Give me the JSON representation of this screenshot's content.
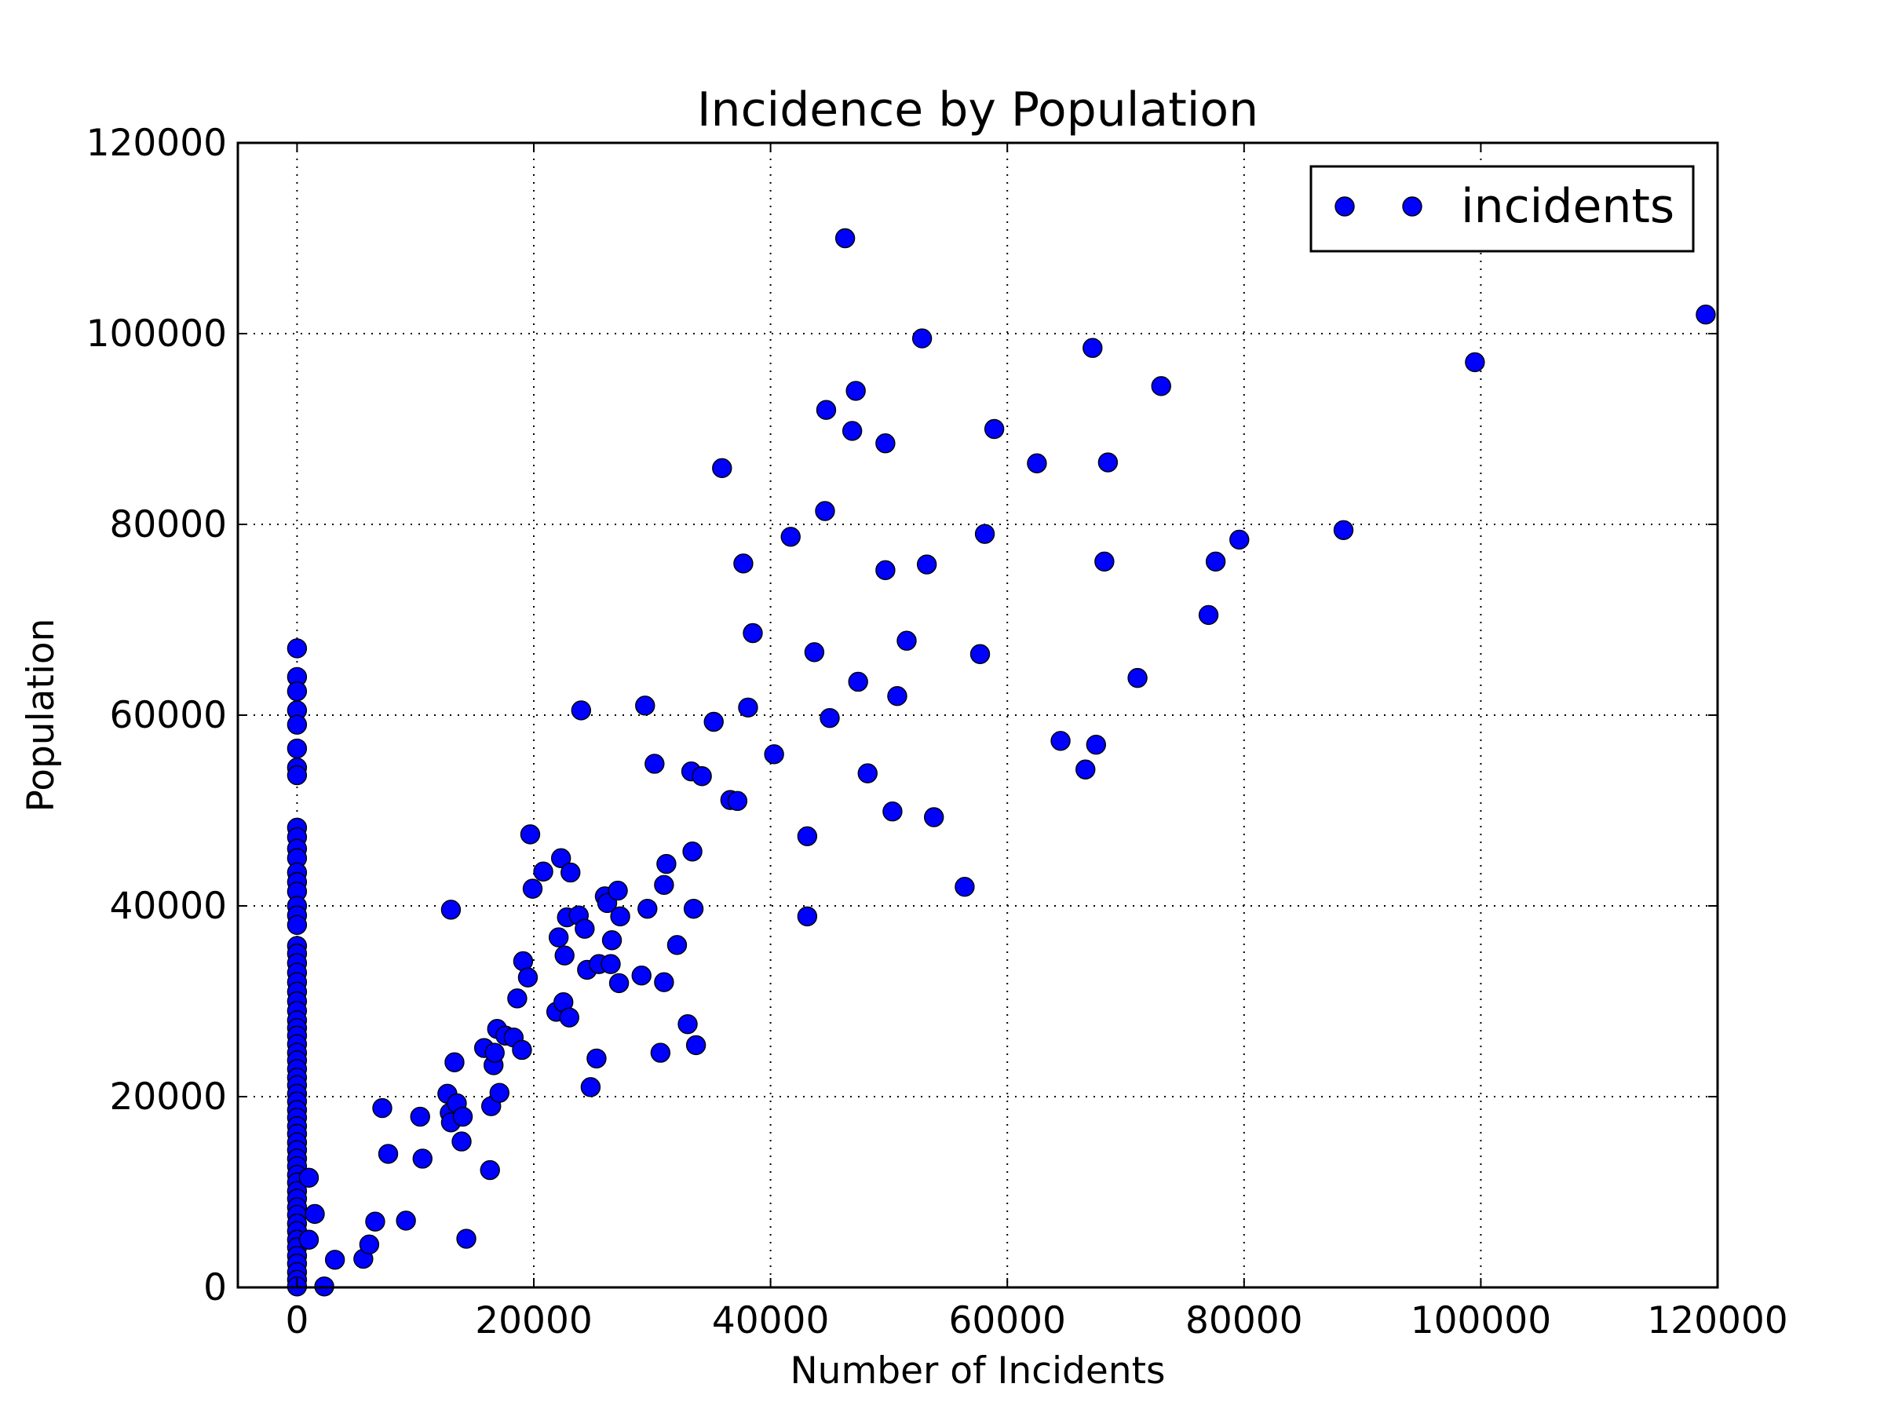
{
  "chart_data": {
    "type": "scatter",
    "title": "Incidence by Population",
    "xlabel": "Number of Incidents",
    "ylabel": "Population",
    "xlim": [
      -5000,
      120000
    ],
    "ylim": [
      0,
      120000
    ],
    "xticks": [
      "0",
      "20000",
      "40000",
      "60000",
      "80000",
      "100000",
      "120000"
    ],
    "yticks": [
      "0",
      "20000",
      "40000",
      "60000",
      "80000",
      "100000",
      "120000"
    ],
    "grid": true,
    "legend": "top-right",
    "marker_color": "#0000ff",
    "series": [
      {
        "name": "incidents",
        "points": [
          [
            0,
            67000
          ],
          [
            0,
            64000
          ],
          [
            0,
            62500
          ],
          [
            0,
            60500
          ],
          [
            0,
            59000
          ],
          [
            0,
            56500
          ],
          [
            0,
            54500
          ],
          [
            0,
            53700
          ],
          [
            0,
            48200
          ],
          [
            0,
            47200
          ],
          [
            0,
            46000
          ],
          [
            0,
            45000
          ],
          [
            0,
            43500
          ],
          [
            0,
            42500
          ],
          [
            0,
            41500
          ],
          [
            0,
            40000
          ],
          [
            0,
            39000
          ],
          [
            0,
            38000
          ],
          [
            0,
            35800
          ],
          [
            0,
            35000
          ],
          [
            0,
            34000
          ],
          [
            0,
            33000
          ],
          [
            0,
            32000
          ],
          [
            0,
            31000
          ],
          [
            0,
            30000
          ],
          [
            0,
            29000
          ],
          [
            0,
            28000
          ],
          [
            0,
            27200
          ],
          [
            0,
            26400
          ],
          [
            0,
            25500
          ],
          [
            0,
            24600
          ],
          [
            0,
            23800
          ],
          [
            0,
            22900
          ],
          [
            0,
            22000
          ],
          [
            0,
            21200
          ],
          [
            0,
            20300
          ],
          [
            0,
            19500
          ],
          [
            0,
            18600
          ],
          [
            0,
            17800
          ],
          [
            0,
            16900
          ],
          [
            0,
            16100
          ],
          [
            0,
            15200
          ],
          [
            0,
            14400
          ],
          [
            0,
            13500
          ],
          [
            0,
            12700
          ],
          [
            0,
            11800
          ],
          [
            0,
            11000
          ],
          [
            0,
            10100
          ],
          [
            0,
            9300
          ],
          [
            0,
            8400
          ],
          [
            0,
            7600
          ],
          [
            0,
            6700
          ],
          [
            0,
            5900
          ],
          [
            0,
            5000
          ],
          [
            0,
            4200
          ],
          [
            0,
            3300
          ],
          [
            0,
            2500
          ],
          [
            0,
            1600
          ],
          [
            0,
            800
          ],
          [
            0,
            100
          ],
          [
            1000,
            11500
          ],
          [
            1000,
            5000
          ],
          [
            1500,
            7700
          ],
          [
            2300,
            100
          ],
          [
            3200,
            2900
          ],
          [
            5600,
            3000
          ],
          [
            6100,
            4500
          ],
          [
            6600,
            6900
          ],
          [
            7200,
            18800
          ],
          [
            7700,
            14000
          ],
          [
            9200,
            7000
          ],
          [
            10400,
            17900
          ],
          [
            10600,
            13500
          ],
          [
            12700,
            20300
          ],
          [
            12900,
            18300
          ],
          [
            13000,
            17300
          ],
          [
            13000,
            39600
          ],
          [
            13300,
            23600
          ],
          [
            13500,
            19300
          ],
          [
            13900,
            15300
          ],
          [
            14000,
            17900
          ],
          [
            14300,
            5100
          ],
          [
            15800,
            25100
          ],
          [
            16300,
            12300
          ],
          [
            16400,
            19000
          ],
          [
            16600,
            23300
          ],
          [
            16700,
            24600
          ],
          [
            16900,
            27100
          ],
          [
            17100,
            20400
          ],
          [
            17600,
            26400
          ],
          [
            18300,
            26200
          ],
          [
            18600,
            30300
          ],
          [
            19000,
            24900
          ],
          [
            19100,
            34200
          ],
          [
            19500,
            32500
          ],
          [
            19700,
            47500
          ],
          [
            19900,
            41800
          ],
          [
            20800,
            43600
          ],
          [
            21900,
            28900
          ],
          [
            22100,
            36700
          ],
          [
            22300,
            45000
          ],
          [
            22500,
            29900
          ],
          [
            22600,
            34800
          ],
          [
            22800,
            38800
          ],
          [
            23100,
            43500
          ],
          [
            23000,
            28300
          ],
          [
            23800,
            39000
          ],
          [
            24000,
            60500
          ],
          [
            24300,
            37600
          ],
          [
            24500,
            33300
          ],
          [
            24800,
            21000
          ],
          [
            25300,
            24000
          ],
          [
            25500,
            33900
          ],
          [
            26000,
            41000
          ],
          [
            26200,
            40300
          ],
          [
            26500,
            33900
          ],
          [
            26600,
            36400
          ],
          [
            27100,
            41600
          ],
          [
            27200,
            31900
          ],
          [
            27300,
            38900
          ],
          [
            29100,
            32700
          ],
          [
            29400,
            61000
          ],
          [
            29600,
            39700
          ],
          [
            30200,
            54900
          ],
          [
            30700,
            24600
          ],
          [
            31000,
            32000
          ],
          [
            31000,
            42200
          ],
          [
            31200,
            44400
          ],
          [
            32100,
            35900
          ],
          [
            33000,
            27600
          ],
          [
            33300,
            54100
          ],
          [
            33400,
            45700
          ],
          [
            33500,
            39700
          ],
          [
            33700,
            25400
          ],
          [
            34200,
            53600
          ],
          [
            35200,
            59300
          ],
          [
            35900,
            85900
          ],
          [
            36600,
            51100
          ],
          [
            37200,
            51000
          ],
          [
            37700,
            75900
          ],
          [
            38100,
            60800
          ],
          [
            38500,
            68600
          ],
          [
            40300,
            55900
          ],
          [
            41700,
            78700
          ],
          [
            43100,
            47300
          ],
          [
            43100,
            38900
          ],
          [
            43700,
            66600
          ],
          [
            44600,
            81400
          ],
          [
            44700,
            92000
          ],
          [
            45000,
            59700
          ],
          [
            46300,
            110000
          ],
          [
            46900,
            89800
          ],
          [
            47200,
            94000
          ],
          [
            47400,
            63500
          ],
          [
            48200,
            53900
          ],
          [
            49700,
            88500
          ],
          [
            49700,
            75200
          ],
          [
            50300,
            49900
          ],
          [
            50700,
            62000
          ],
          [
            51500,
            67800
          ],
          [
            52800,
            99500
          ],
          [
            53200,
            75800
          ],
          [
            53800,
            49300
          ],
          [
            56400,
            42000
          ],
          [
            57700,
            66400
          ],
          [
            58100,
            79000
          ],
          [
            58900,
            90000
          ],
          [
            62500,
            86400
          ],
          [
            64500,
            57300
          ],
          [
            66600,
            54300
          ],
          [
            67200,
            98500
          ],
          [
            67500,
            56900
          ],
          [
            68200,
            76100
          ],
          [
            68500,
            86500
          ],
          [
            71000,
            63900
          ],
          [
            73000,
            94500
          ],
          [
            77000,
            70500
          ],
          [
            77600,
            76100
          ],
          [
            79600,
            78400
          ],
          [
            88400,
            79400
          ],
          [
            99500,
            97000
          ],
          [
            119000,
            102000
          ]
        ]
      }
    ]
  }
}
